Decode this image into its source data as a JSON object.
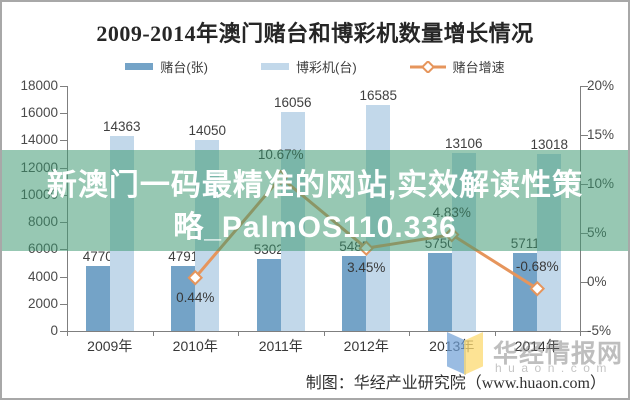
{
  "chart": {
    "title": "2009-2014年澳门赌台和博彩机数量增长情况"
  },
  "chart_data": {
    "type": "bar+line",
    "title": "2009-2014年澳门赌台和博彩机数量增长情况",
    "categories": [
      "2009年",
      "2010年",
      "2011年",
      "2012年",
      "2013年",
      "2014年"
    ],
    "series": [
      {
        "name": "赌台(张)",
        "type": "bar",
        "axis": "left",
        "color": "#74A3C7",
        "values": [
          4770,
          4791,
          5302,
          5485,
          5750,
          5711
        ]
      },
      {
        "name": "博彩机(台)",
        "type": "bar",
        "axis": "left",
        "color": "#C2D8EA",
        "values": [
          14363,
          14050,
          16056,
          16585,
          13106,
          13018
        ]
      },
      {
        "name": "赌台增速",
        "type": "line",
        "axis": "right",
        "color": "#E6955C",
        "points": [
          {
            "category": "2010年",
            "value": 0.44,
            "label": "0.44%",
            "label_pos": "below"
          },
          {
            "category": "2011年",
            "value": 10.67,
            "label": "10.67%",
            "label_pos": "above"
          },
          {
            "category": "2012年",
            "value": 3.45,
            "label": "3.45%",
            "label_pos": "below"
          },
          {
            "category": "2013年",
            "value": 4.83,
            "label": "4.83%",
            "label_pos": "above"
          },
          {
            "category": "2014年",
            "value": -0.68,
            "label": "-0.68%",
            "label_pos": "above"
          }
        ]
      }
    ],
    "left_axis": {
      "min": 0,
      "max": 18000,
      "step": 2000,
      "tick_labels": [
        "0",
        "2000",
        "4000",
        "6000",
        "8000",
        "10000",
        "12000",
        "14000",
        "16000",
        "18000"
      ]
    },
    "right_axis": {
      "min": -5,
      "max": 20,
      "step": 5,
      "tick_labels": [
        "-5%",
        "0%",
        "5%",
        "10%",
        "15%",
        "20%"
      ]
    },
    "grid": "off",
    "legend_position": "top"
  },
  "overlay": {
    "text": "新澳门一码最精准的网站,实效解读性策略_PalmOS110.336",
    "lines": [
      "新澳门一码最精准的网站,实效解读性策",
      "略_PalmOS110.336"
    ],
    "band_color": "rgba(59,151,111,0.53)",
    "text_color": "#FFFFFF"
  },
  "watermark": {
    "brand": "华经情报网",
    "domain": "huaon.com"
  },
  "credit": {
    "text": "制图：华经产业研究院（www.huaon.com）"
  }
}
